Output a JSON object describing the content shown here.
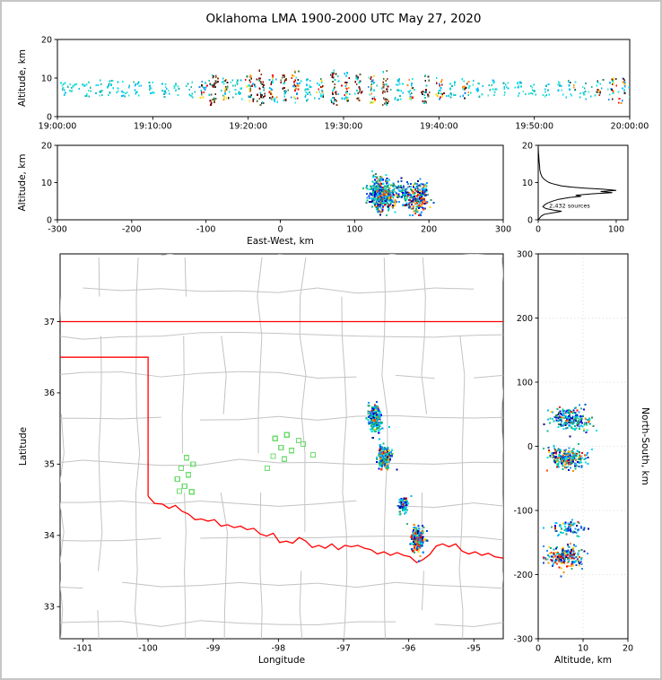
{
  "title": "Oklahoma LMA 1900-2000 UTC May 27, 2020",
  "chart_data": {
    "type": "scatter",
    "seed": 20200527,
    "colors": {
      "county": "#c3c3c3",
      "state_border": "#ff0000",
      "station": "#6fdc6f",
      "grid": "#dcdcdc",
      "axis": "#000000",
      "histogram_line": "#000000"
    },
    "palettes": {
      "cool": [
        "#00008b",
        "#0000ee",
        "#1e90ff",
        "#00bfff",
        "#00e5e5",
        "#00c08b",
        "#2e8b57",
        "#3cb371",
        "#0050d0"
      ],
      "hot": [
        "#ff0000",
        "#ff4500",
        "#ff8c00",
        "#ffcf00",
        "#b22222"
      ],
      "cyan": [
        "#00e5e5",
        "#00cccc",
        "#40e0d0",
        "#00bfff",
        "#20b2aa"
      ],
      "dark": [
        "#8b0000",
        "#800000",
        "#303030",
        "#556b2f",
        "#8b4513",
        "#00ced1"
      ],
      "mix": [
        "#00e5e5",
        "#00bfff",
        "#2e8b57",
        "#ff8c00",
        "#ff0000",
        "#8b0000",
        "#ffd700",
        "#202020",
        "#40e0d0",
        "#1e90ff"
      ]
    },
    "cells": [
      {
        "lon": -96.52,
        "lat": 35.64,
        "ew": 130,
        "ns": 42,
        "n": 210,
        "alt_mean": 7.0,
        "alt_std": 2.2,
        "slon": 0.05,
        "slat": 0.09,
        "sew": 7,
        "sns": 9,
        "hot": 0.08
      },
      {
        "lon": -96.38,
        "lat": 35.1,
        "ew": 142,
        "ns": -18,
        "n": 260,
        "alt_mean": 6.5,
        "alt_std": 2.0,
        "slon": 0.045,
        "slat": 0.07,
        "sew": 8,
        "sns": 8,
        "hot": 0.22
      },
      {
        "lon": -96.08,
        "lat": 34.42,
        "ew": 168,
        "ns": -128,
        "n": 70,
        "alt_mean": 6.5,
        "alt_std": 1.8,
        "slon": 0.04,
        "slat": 0.06,
        "sew": 6,
        "sns": 6,
        "hot": 0.05
      },
      {
        "lon": -95.86,
        "lat": 33.95,
        "ew": 186,
        "ns": -172,
        "n": 200,
        "alt_mean": 6.0,
        "alt_std": 2.0,
        "slon": 0.05,
        "slat": 0.08,
        "sew": 7,
        "sns": 8,
        "hot": 0.28
      }
    ],
    "panels": {
      "time_height": {
        "ylabel": "Altitude, km",
        "xlim": [
          0,
          60
        ],
        "ylim": [
          0,
          20
        ],
        "xticks": {
          "vals": [
            0,
            10,
            20,
            30,
            40,
            50,
            60
          ],
          "labels": [
            "19:00:00",
            "19:10:00",
            "19:20:00",
            "19:30:00",
            "19:40:00",
            "19:50:00",
            "20:00:00"
          ]
        },
        "yticks": {
          "vals": [
            0,
            10,
            20
          ],
          "labels": [
            "0",
            "10",
            "20"
          ]
        },
        "noise_n": 85,
        "bursts": [
          [
            0.7,
            10,
            5.5,
            9,
            "cyan"
          ],
          [
            1.8,
            8,
            6,
            9,
            "cyan"
          ],
          [
            3.0,
            12,
            5,
            9,
            "cyan"
          ],
          [
            4.3,
            9,
            5.5,
            8.5,
            "cyan"
          ],
          [
            5.5,
            11,
            6,
            9.5,
            "cyan"
          ],
          [
            7.0,
            8,
            5,
            8,
            "cyan"
          ],
          [
            8.4,
            12,
            5.5,
            9,
            "cyan"
          ],
          [
            9.8,
            9,
            6,
            9,
            "cyan"
          ],
          [
            11.2,
            10,
            5,
            8.5,
            "cyan"
          ],
          [
            12.6,
            8,
            5.5,
            8.5,
            "cyan"
          ],
          [
            14.0,
            11,
            5,
            9,
            "cyan"
          ],
          [
            15.3,
            14,
            4.5,
            9.5,
            "mix"
          ],
          [
            16.4,
            30,
            3,
            11,
            "dark"
          ],
          [
            17.6,
            22,
            4,
            10.5,
            "mix"
          ],
          [
            19.0,
            16,
            5,
            10,
            "cyan"
          ],
          [
            20.2,
            26,
            3.5,
            11,
            "mix"
          ],
          [
            21.4,
            32,
            3,
            12,
            "dark"
          ],
          [
            22.6,
            28,
            3.5,
            11,
            "mix"
          ],
          [
            23.8,
            24,
            4,
            11,
            "dark"
          ],
          [
            25.0,
            30,
            3,
            12,
            "mix"
          ],
          [
            26.2,
            20,
            4,
            10,
            "cyan"
          ],
          [
            27.6,
            18,
            4.5,
            10,
            "mix"
          ],
          [
            29.0,
            30,
            3,
            12,
            "dark"
          ],
          [
            30.3,
            28,
            3.5,
            11.5,
            "mix"
          ],
          [
            31.6,
            24,
            4,
            11,
            "dark"
          ],
          [
            33.0,
            26,
            3.5,
            11,
            "mix"
          ],
          [
            34.4,
            30,
            3,
            12,
            "dark"
          ],
          [
            35.8,
            18,
            4,
            10,
            "cyan"
          ],
          [
            37.2,
            16,
            4.5,
            10,
            "mix"
          ],
          [
            38.6,
            24,
            3.5,
            11,
            "dark"
          ],
          [
            40.0,
            20,
            4,
            10.5,
            "mix"
          ],
          [
            41.4,
            12,
            5,
            9,
            "cyan"
          ],
          [
            42.8,
            15,
            4.5,
            10,
            "mix"
          ],
          [
            44.2,
            10,
            5,
            9,
            "cyan"
          ],
          [
            45.6,
            12,
            5,
            9.5,
            "cyan"
          ],
          [
            47.0,
            9,
            5.5,
            9,
            "cyan"
          ],
          [
            48.4,
            11,
            5,
            9,
            "cyan"
          ],
          [
            49.8,
            8,
            5.5,
            8.5,
            "cyan"
          ],
          [
            51.2,
            10,
            5,
            9,
            "cyan"
          ],
          [
            52.6,
            9,
            5.5,
            9,
            "cyan"
          ],
          [
            54.0,
            11,
            5,
            9.5,
            "mix"
          ],
          [
            55.4,
            9,
            5.5,
            9,
            "cyan"
          ],
          [
            56.8,
            13,
            4.5,
            10,
            "mix"
          ],
          [
            58.2,
            15,
            4,
            10,
            "mix"
          ],
          [
            59.3,
            18,
            3.5,
            10.5,
            "mix"
          ]
        ]
      },
      "ew_height": {
        "xlabel": "East-West, km",
        "ylabel": "Altitude, km",
        "xlim": [
          -300,
          300
        ],
        "ylim": [
          0,
          20
        ],
        "xticks": {
          "vals": [
            -300,
            -200,
            -100,
            0,
            100,
            200,
            300
          ],
          "labels": [
            "-300",
            "-200",
            "-100",
            "0",
            "100",
            "200",
            "300"
          ]
        },
        "yticks": {
          "vals": [
            0,
            10,
            20
          ],
          "labels": [
            "0",
            "10",
            "20"
          ]
        }
      },
      "alt_histogram": {
        "xlim": [
          0,
          115
        ],
        "ylim": [
          0,
          20
        ],
        "xticks": {
          "vals": [
            0,
            100
          ],
          "labels": [
            "0",
            "100"
          ]
        },
        "yticks": {
          "vals": [
            0,
            10,
            20
          ],
          "labels": [
            "0",
            "10",
            "20"
          ]
        },
        "annotation": "2,432 sources",
        "annotation_x": 14,
        "annotation_y": 3.2,
        "profile": [
          [
            0,
            0
          ],
          [
            0.5,
            2
          ],
          [
            1,
            4
          ],
          [
            1.5,
            8
          ],
          [
            2,
            22
          ],
          [
            2.3,
            30
          ],
          [
            2.6,
            20
          ],
          [
            3,
            10
          ],
          [
            3.5,
            6
          ],
          [
            4,
            8
          ],
          [
            4.5,
            12
          ],
          [
            5,
            18
          ],
          [
            5.5,
            26
          ],
          [
            6,
            40
          ],
          [
            6.3,
            55
          ],
          [
            6.6,
            48
          ],
          [
            7,
            70
          ],
          [
            7.3,
            95
          ],
          [
            7.6,
            80
          ],
          [
            7.9,
            100
          ],
          [
            8.2,
            85
          ],
          [
            8.5,
            60
          ],
          [
            8.8,
            42
          ],
          [
            9.1,
            30
          ],
          [
            9.4,
            24
          ],
          [
            9.7,
            18
          ],
          [
            10,
            14
          ],
          [
            10.5,
            10
          ],
          [
            11,
            7
          ],
          [
            11.5,
            5
          ],
          [
            12,
            4
          ],
          [
            12.5,
            3
          ],
          [
            13,
            2.5
          ],
          [
            13.5,
            2
          ],
          [
            14,
            2
          ],
          [
            15,
            1.5
          ],
          [
            16,
            1
          ],
          [
            17,
            0.8
          ],
          [
            18,
            0.3
          ],
          [
            19,
            0.1
          ],
          [
            20,
            0
          ]
        ]
      },
      "plan_map": {
        "xlabel": "Longitude",
        "ylabel": "Latitude",
        "xlim": [
          -101.35,
          -94.55
        ],
        "ylim": [
          32.55,
          37.95
        ],
        "xticks": {
          "vals": [
            -101,
            -100,
            -99,
            -98,
            -97,
            -96,
            -95
          ],
          "labels": [
            "-101",
            "-100",
            "-99",
            "-98",
            "-97",
            "-96",
            "-95"
          ]
        },
        "yticks": {
          "vals": [
            33,
            34,
            35,
            36,
            37
          ],
          "labels": [
            "33",
            "34",
            "35",
            "36",
            "37"
          ]
        },
        "county_grid": {
          "seed": 77,
          "col0": -101.32,
          "dcol": 0.615,
          "ncols": 12,
          "row0": 32.72,
          "drow": 0.585,
          "nrows": 10,
          "jitter": 0.05,
          "skip": 0.13,
          "lat_start": 32.4,
          "lat_end": 38.2,
          "lat_step": 0.55,
          "lon_start": -101.6,
          "lon_end": -94.3,
          "lon_step": 0.6
        },
        "boundaries": [
          [
            [
              -101.35,
              37
            ],
            [
              -94.55,
              37
            ]
          ],
          [
            [
              -101.35,
              36.5
            ],
            [
              -100,
              36.5
            ],
            [
              -100,
              34.55
            ]
          ],
          [
            [
              -100,
              34.55
            ],
            [
              -99.9,
              34.45
            ],
            [
              -99.78,
              34.44
            ],
            [
              -99.68,
              34.38
            ],
            [
              -99.58,
              34.42
            ],
            [
              -99.48,
              34.34
            ],
            [
              -99.38,
              34.3
            ],
            [
              -99.28,
              34.22
            ],
            [
              -99.18,
              34.23
            ],
            [
              -99.08,
              34.2
            ],
            [
              -98.98,
              34.22
            ],
            [
              -98.88,
              34.13
            ],
            [
              -98.78,
              34.15
            ],
            [
              -98.68,
              34.11
            ],
            [
              -98.58,
              34.13
            ],
            [
              -98.48,
              34.08
            ],
            [
              -98.38,
              34.1
            ],
            [
              -98.28,
              34.02
            ],
            [
              -98.18,
              33.99
            ],
            [
              -98.08,
              34.03
            ],
            [
              -97.98,
              33.9
            ],
            [
              -97.88,
              33.92
            ],
            [
              -97.78,
              33.89
            ],
            [
              -97.68,
              33.97
            ],
            [
              -97.58,
              33.92
            ],
            [
              -97.48,
              33.83
            ],
            [
              -97.38,
              33.86
            ],
            [
              -97.28,
              33.82
            ],
            [
              -97.18,
              33.88
            ],
            [
              -97.08,
              33.8
            ],
            [
              -96.98,
              33.86
            ],
            [
              -96.88,
              33.84
            ],
            [
              -96.78,
              33.86
            ],
            [
              -96.68,
              33.82
            ],
            [
              -96.58,
              33.8
            ],
            [
              -96.48,
              33.74
            ],
            [
              -96.38,
              33.77
            ],
            [
              -96.28,
              33.72
            ],
            [
              -96.18,
              33.76
            ],
            [
              -96.08,
              33.72
            ],
            [
              -95.98,
              33.7
            ],
            [
              -95.88,
              33.62
            ],
            [
              -95.78,
              33.66
            ],
            [
              -95.68,
              33.73
            ],
            [
              -95.58,
              33.85
            ],
            [
              -95.48,
              33.88
            ],
            [
              -95.38,
              33.84
            ],
            [
              -95.28,
              33.88
            ],
            [
              -95.18,
              33.78
            ],
            [
              -95.08,
              33.74
            ],
            [
              -94.98,
              33.77
            ],
            [
              -94.88,
              33.72
            ],
            [
              -94.78,
              33.75
            ],
            [
              -94.68,
              33.7
            ],
            [
              -94.55,
              33.68
            ]
          ]
        ],
        "stations": [
          [
            -99.41,
            35.09
          ],
          [
            -99.31,
            35.0
          ],
          [
            -99.49,
            34.94
          ],
          [
            -99.38,
            34.85
          ],
          [
            -99.55,
            34.79
          ],
          [
            -99.44,
            34.69
          ],
          [
            -99.33,
            34.61
          ],
          [
            -99.52,
            34.62
          ],
          [
            -98.05,
            35.36
          ],
          [
            -97.87,
            35.41
          ],
          [
            -97.69,
            35.33
          ],
          [
            -97.96,
            35.23
          ],
          [
            -97.8,
            35.19
          ],
          [
            -98.08,
            35.11
          ],
          [
            -97.91,
            35.07
          ],
          [
            -97.62,
            35.28
          ],
          [
            -98.17,
            34.94
          ],
          [
            -97.47,
            35.13
          ]
        ],
        "strays": [
          [
            -96.62,
            35.82
          ],
          [
            -96.3,
            35.52
          ],
          [
            -96.18,
            34.92
          ],
          [
            -95.72,
            34.06
          ],
          [
            -96.02,
            34.16
          ],
          [
            -96.45,
            35.35
          ]
        ]
      },
      "ns_height": {
        "xlabel": "Altitude, km",
        "ylabel_right": "North-South, km",
        "xlim": [
          0,
          20
        ],
        "ylim": [
          -300,
          300
        ],
        "xticks": {
          "vals": [
            0,
            10,
            20
          ],
          "labels": [
            "0",
            "10",
            "20"
          ]
        },
        "yticks": {
          "vals": [
            -300,
            -200,
            -100,
            0,
            100,
            200,
            300
          ],
          "labels": [
            "-300",
            "-200",
            "-100",
            "0",
            "100",
            "200",
            "300"
          ]
        }
      }
    }
  }
}
